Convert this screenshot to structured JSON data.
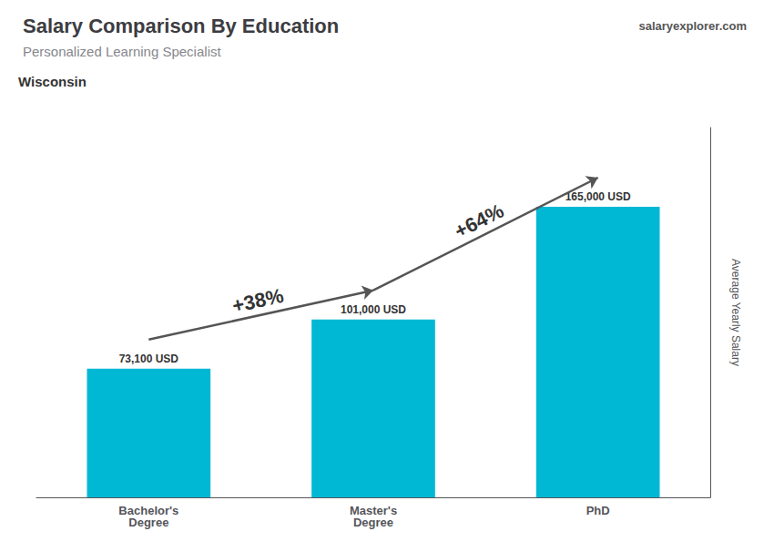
{
  "chart_data": {
    "type": "bar",
    "title": "Salary Comparison By Education",
    "subtitle": "Personalized Learning Specialist",
    "annotations": [
      "Wisconsin",
      "salaryexplorer.com"
    ],
    "change_labels": [
      "+38%",
      "+64%"
    ],
    "ylabel": "Average Yearly Salary",
    "categories": [
      "Bachelor's\nDegree",
      "Master's\nDegree",
      "PhD"
    ],
    "values": [
      73100,
      101000,
      165000
    ],
    "value_labels": [
      "73,100 USD",
      "101,000 USD",
      "165,000 USD"
    ],
    "data_labels": true,
    "color": "#00b8d4",
    "ylim": [
      0,
      210000
    ],
    "grid": false,
    "tick_labels": "x"
  }
}
